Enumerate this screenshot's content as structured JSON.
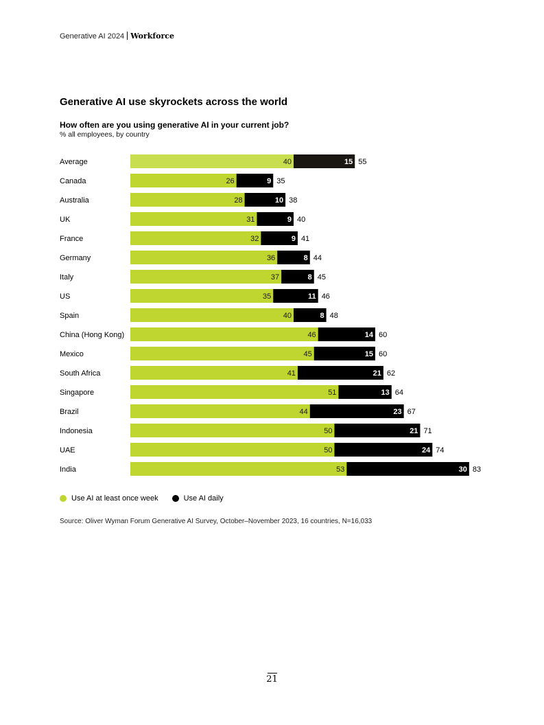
{
  "header": {
    "report": "Generative AI 2024",
    "section": "Workforce"
  },
  "chart_data": {
    "type": "bar",
    "orientation": "horizontal",
    "stacked": true,
    "title": "Generative AI use skyrockets across the world",
    "subtitle": "How often are you using generative AI in your current job?",
    "unit_note": "% all employees, by country",
    "categories": [
      "Average",
      "Canada",
      "Australia",
      "UK",
      "France",
      "Germany",
      "Italy",
      "US",
      "Spain",
      "China (Hong Kong)",
      "Mexico",
      "South Africa",
      "Singapore",
      "Brazil",
      "Indonesia",
      "UAE",
      "India"
    ],
    "series": [
      {
        "name": "Use AI at least once week",
        "color": "#bed62f",
        "values": [
          40,
          26,
          28,
          31,
          32,
          36,
          37,
          35,
          40,
          46,
          45,
          41,
          51,
          44,
          50,
          50,
          53
        ]
      },
      {
        "name": "Use AI daily",
        "color": "#000000",
        "values": [
          15,
          9,
          10,
          9,
          9,
          8,
          8,
          11,
          8,
          14,
          15,
          21,
          13,
          23,
          21,
          24,
          30
        ]
      }
    ],
    "totals": [
      55,
      35,
      38,
      40,
      41,
      44,
      45,
      46,
      48,
      60,
      60,
      62,
      64,
      67,
      71,
      74,
      83
    ],
    "highlight": {
      "category": "Average",
      "colors": [
        "#c9de4f",
        "#1a1612"
      ]
    },
    "legend_position": "bottom-left",
    "grid": false
  },
  "legend": [
    {
      "label": "Use AI at least once week",
      "color": "#bed62f"
    },
    {
      "label": "Use AI daily",
      "color": "#000000"
    }
  ],
  "source": "Source: Oliver Wyman Forum Generative AI Survey, October–November 2023, 16 countries, N=16,033",
  "page_number": "21"
}
